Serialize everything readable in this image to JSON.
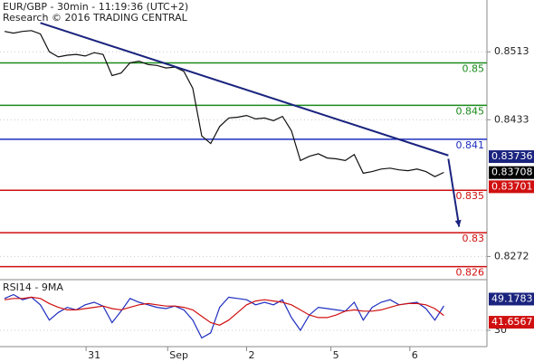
{
  "chart_data": [
    {
      "type": "line",
      "title": "EUR/GBP - 30min - 11:19:36 (UTC+2)",
      "subtitle": "Research © 2016 TRADING CENTRAL",
      "xlim": [
        -0.5,
        53.8
      ],
      "xticks": [
        {
          "value": 9.1,
          "label": "31"
        },
        {
          "value": 18.2,
          "label": "Sep"
        },
        {
          "value": 27,
          "label": "2"
        },
        {
          "value": 36.4,
          "label": "5"
        },
        {
          "value": 45.2,
          "label": "6"
        }
      ],
      "ylim": [
        0.8249,
        0.8574
      ],
      "yticks": [
        0.8513,
        0.8433,
        0.8272
      ],
      "series": [
        {
          "color": "#111111",
          "values": [
            0.8537,
            0.8535,
            0.8537,
            0.8538,
            0.8534,
            0.8513,
            0.8507,
            0.8509,
            0.851,
            0.8508,
            0.8512,
            0.851,
            0.8485,
            0.8488,
            0.85,
            0.8502,
            0.8498,
            0.8497,
            0.8494,
            0.8495,
            0.849,
            0.847,
            0.8414,
            0.8405,
            0.8425,
            0.8435,
            0.8436,
            0.8438,
            0.8434,
            0.8435,
            0.8432,
            0.8437,
            0.842,
            0.8385,
            0.839,
            0.8393,
            0.8388,
            0.8387,
            0.8385,
            0.8392,
            0.837,
            0.8372,
            0.8375,
            0.8376,
            0.8374,
            0.8373,
            0.8375,
            0.8372,
            0.8366,
            0.8371
          ]
        }
      ],
      "levels": [
        {
          "value": 0.85,
          "color": "#1a8a1a"
        },
        {
          "value": 0.845,
          "color": "#1a8a1a"
        },
        {
          "value": 0.841,
          "color": "#1f2fbf"
        },
        {
          "value": 0.835,
          "color": "#d01010"
        },
        {
          "value": 0.83,
          "color": "#d01010"
        },
        {
          "value": 0.826,
          "color": "#d01010"
        }
      ],
      "trendline": {
        "color": "#1a237e",
        "x": [
          4,
          49.5
        ],
        "values": [
          0.8547,
          0.8391
        ]
      },
      "arrow": {
        "color": "#1a237e",
        "x": [
          49.5,
          50.7
        ],
        "values": [
          0.8387,
          0.8307
        ]
      },
      "price_labels": [
        {
          "value": 0.83736,
          "color": "#1a237e"
        },
        {
          "value": 0.83708,
          "color": "#000000"
        },
        {
          "value": 0.83701,
          "color": "#d01010"
        }
      ]
    },
    {
      "type": "line",
      "title": "RSI14 - 9MA",
      "ylim": [
        17.2,
        66.9
      ],
      "yticks": [
        30
      ],
      "series": [
        {
          "color": "#1f2fbf",
          "values": [
            55,
            58,
            54,
            56,
            50,
            38,
            44,
            48,
            46,
            50,
            52,
            49,
            36,
            45,
            55,
            52,
            50,
            48,
            47,
            49,
            46,
            38,
            24,
            28,
            48,
            56,
            55,
            54,
            50,
            52,
            50,
            54,
            40,
            30,
            42,
            48,
            47,
            46,
            45,
            52,
            38,
            48,
            52,
            54,
            50,
            51,
            52,
            47,
            38,
            49.1783
          ]
        },
        {
          "color": "#d01010",
          "values": [
            54,
            55,
            55,
            56,
            55,
            51,
            48,
            46,
            46,
            47,
            48,
            49,
            47,
            46,
            48,
            50,
            51,
            50,
            49,
            49,
            48,
            46,
            41,
            36,
            34,
            38,
            44,
            50,
            53,
            54,
            53,
            52,
            50,
            46,
            42,
            40,
            40,
            42,
            45,
            46,
            45,
            45,
            46,
            48,
            50,
            51,
            51,
            50,
            47,
            41.6567
          ]
        }
      ],
      "price_labels": [
        {
          "value": 49.1783,
          "color": "#1a237e"
        },
        {
          "value": 41.6567,
          "color": "#d01010"
        }
      ]
    }
  ]
}
